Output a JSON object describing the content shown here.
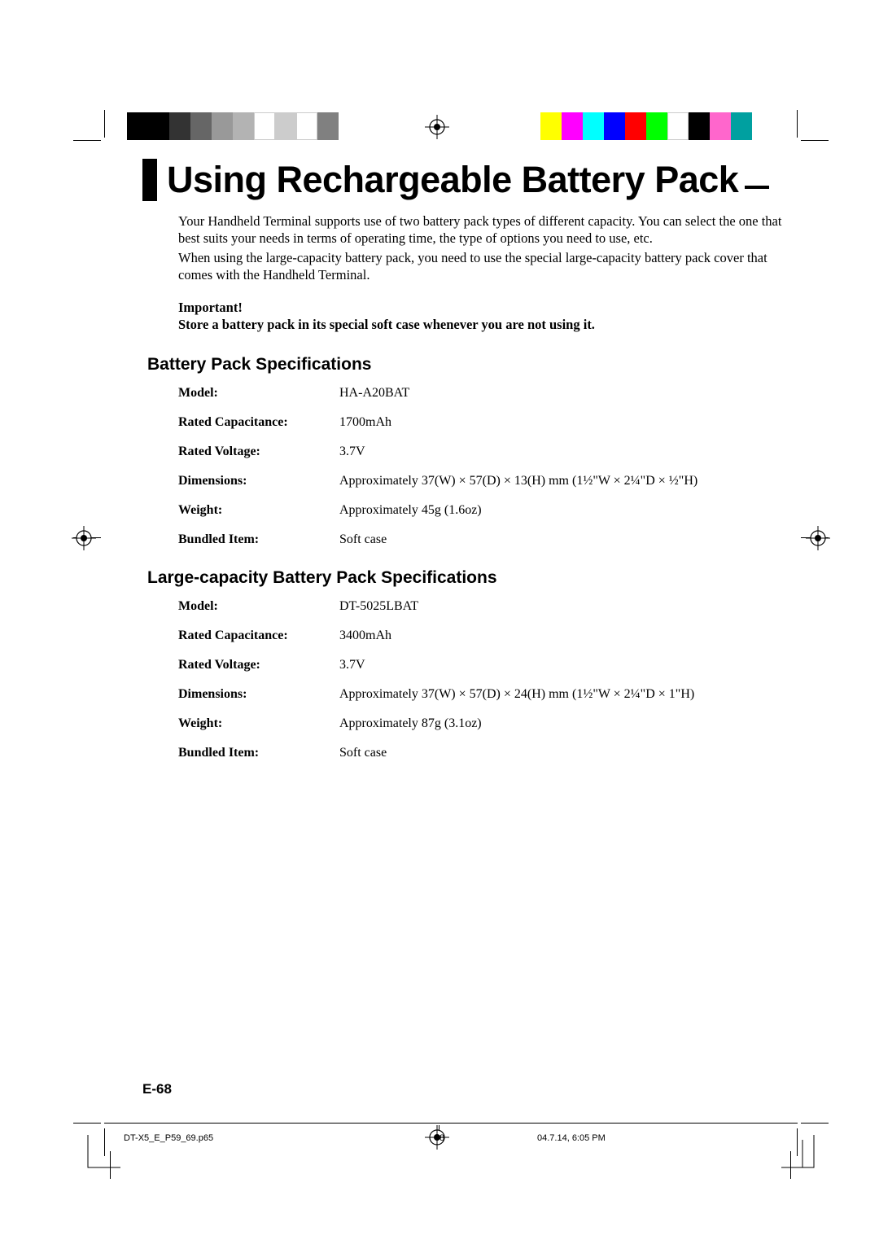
{
  "title": "Using Rechargeable Battery Pack",
  "intro": {
    "p1": "Your Handheld Terminal supports use of two battery pack types of different capacity. You can select the one that best suits your needs in terms of operating time, the type of options you need to use, etc.",
    "p2": "When using the large-capacity battery pack, you need to use the special large-capacity battery pack cover that comes with the Handheld Terminal."
  },
  "important": {
    "heading": "Important!",
    "text": "Store a battery pack in its special soft case whenever you are not using it."
  },
  "section1": {
    "title": "Battery Pack Specifications",
    "rows": [
      {
        "label": "Model:",
        "value": "HA-A20BAT"
      },
      {
        "label": "Rated Capacitance:",
        "value": "1700mAh"
      },
      {
        "label": "Rated Voltage:",
        "value": "3.7V"
      },
      {
        "label": "Dimensions:",
        "value": "Approximately 37(W) × 57(D) × 13(H) mm (1½\"W × 2¼\"D × ½\"H)"
      },
      {
        "label": "Weight:",
        "value": "Approximately 45g (1.6oz)"
      },
      {
        "label": "Bundled Item:",
        "value": "Soft case"
      }
    ]
  },
  "section2": {
    "title": "Large-capacity Battery Pack Specifications",
    "rows": [
      {
        "label": "Model:",
        "value": "DT-5025LBAT"
      },
      {
        "label": "Rated Capacitance:",
        "value": "3400mAh"
      },
      {
        "label": "Rated Voltage:",
        "value": "3.7V"
      },
      {
        "label": "Dimensions:",
        "value": "Approximately 37(W) × 57(D) × 24(H) mm (1½\"W × 2¼\"D × 1\"H)"
      },
      {
        "label": "Weight:",
        "value": "Approximately 87g (3.1oz)"
      },
      {
        "label": "Bundled Item:",
        "value": "Soft case"
      }
    ]
  },
  "pageNumber": "E-68",
  "footer": {
    "file": "DT-X5_E_P59_69.p65",
    "page": "68",
    "timestamp": "04.7.14, 6:05 PM"
  },
  "colorbars": {
    "left": [
      "#000000",
      "#000000",
      "#333333",
      "#666666",
      "#999999",
      "#b3b3b3",
      "#ffffff",
      "#cccccc",
      "#ffffff",
      "#808080"
    ],
    "right": [
      "#ffff00",
      "#ff00ff",
      "#00ffff",
      "#0000ff",
      "#ff0000",
      "#00ff00",
      "#ffffff",
      "#000000",
      "#ff66cc",
      "#00a0a0"
    ]
  }
}
